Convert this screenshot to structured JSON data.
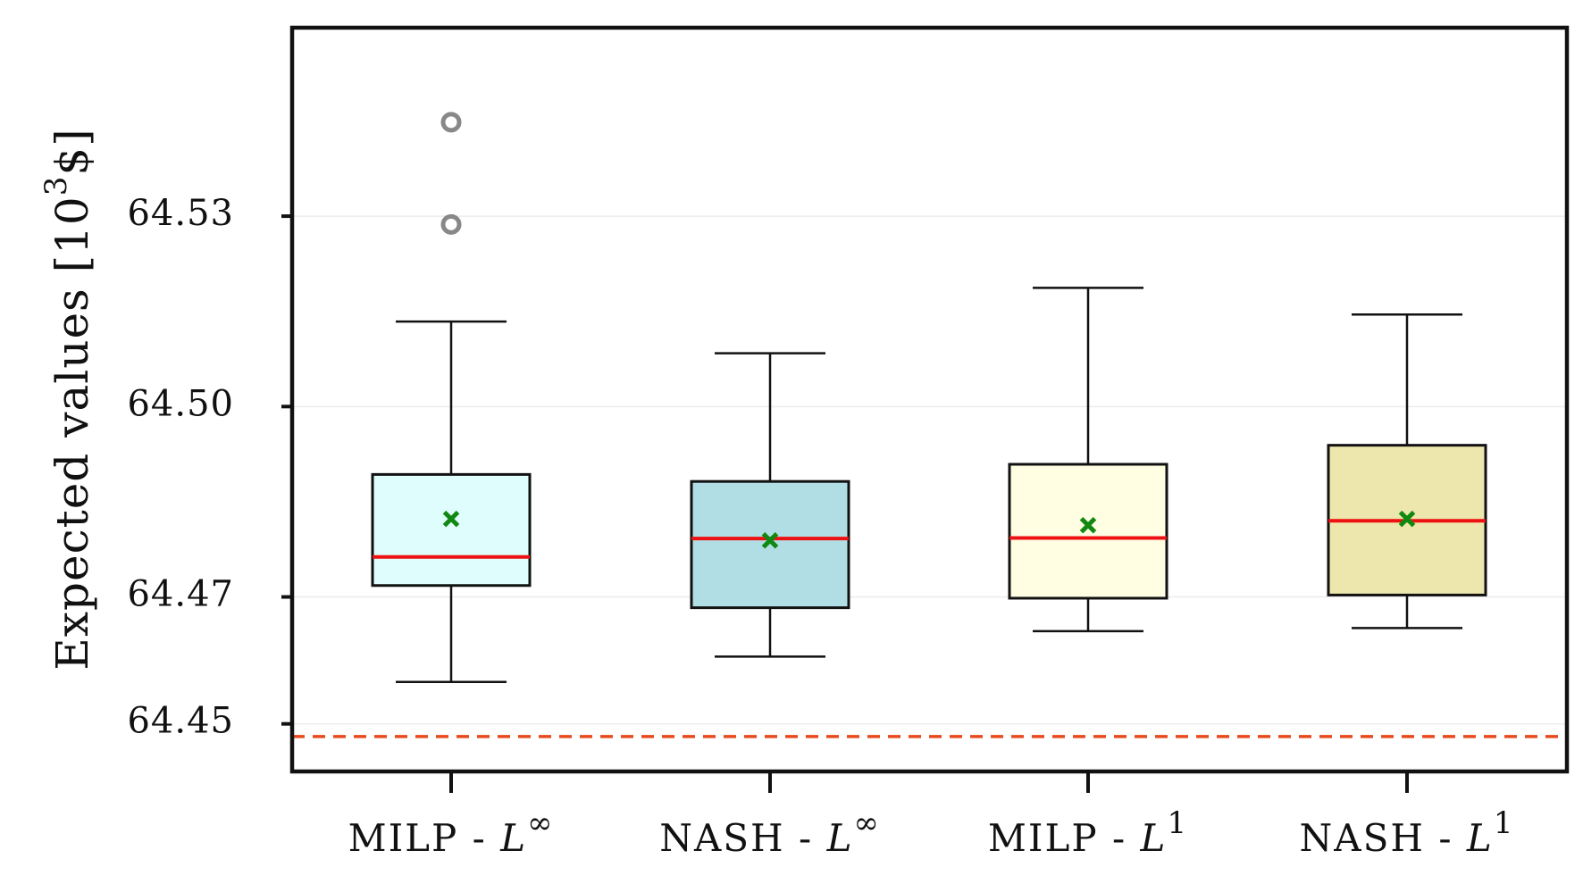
{
  "chart_data": {
    "type": "box",
    "title": "",
    "xlabel": "",
    "ylabel": "Expected values [10",
    "ylabel_sup": "3",
    "ylabel_suffix": "$]",
    "ylim": [
      64.4425,
      64.5597
    ],
    "yticks": [
      64.45,
      64.47,
      64.5,
      64.53
    ],
    "ytick_labels": [
      "64.45",
      "64.47",
      "64.50",
      "64.53"
    ],
    "grid": true,
    "reference_line": {
      "value": 64.448,
      "style": "dashed",
      "color": "#e8491d"
    },
    "colors": {
      "median": "#ee1111",
      "mean": "#118811",
      "outlier": "#888888",
      "box_edge": "#111111",
      "grid": "#ececec"
    },
    "series": [
      {
        "name": "MILP - L∞",
        "label_main": "MILP - ",
        "label_var": "L",
        "label_sup": "∞",
        "whisker_low": 64.4566,
        "q1": 64.4718,
        "median": 64.4763,
        "q3": 64.4893,
        "whisker_high": 64.5134,
        "mean": 64.4823,
        "outliers": [
          64.5287,
          64.5448
        ],
        "fill": "#e0fdfd"
      },
      {
        "name": "NASH - L∞",
        "label_main": "NASH - ",
        "label_var": "L",
        "label_sup": "∞",
        "whisker_low": 64.4606,
        "q1": 64.4683,
        "median": 64.4792,
        "q3": 64.4882,
        "whisker_high": 64.5084,
        "mean": 64.4789,
        "outliers": [],
        "fill": "#b0dee4"
      },
      {
        "name": "MILP - L1",
        "label_main": "MILP - ",
        "label_var": "L",
        "label_sup": "1",
        "whisker_low": 64.4646,
        "q1": 64.4698,
        "median": 64.4793,
        "q3": 64.4909,
        "whisker_high": 64.5187,
        "mean": 64.4813,
        "outliers": [],
        "fill": "#fffde2"
      },
      {
        "name": "NASH - L1",
        "label_main": "NASH - ",
        "label_var": "L",
        "label_sup": "1",
        "whisker_low": 64.4651,
        "q1": 64.4703,
        "median": 64.482,
        "q3": 64.4939,
        "whisker_high": 64.5145,
        "mean": 64.4823,
        "outliers": [],
        "fill": "#eee7ad"
      }
    ]
  }
}
